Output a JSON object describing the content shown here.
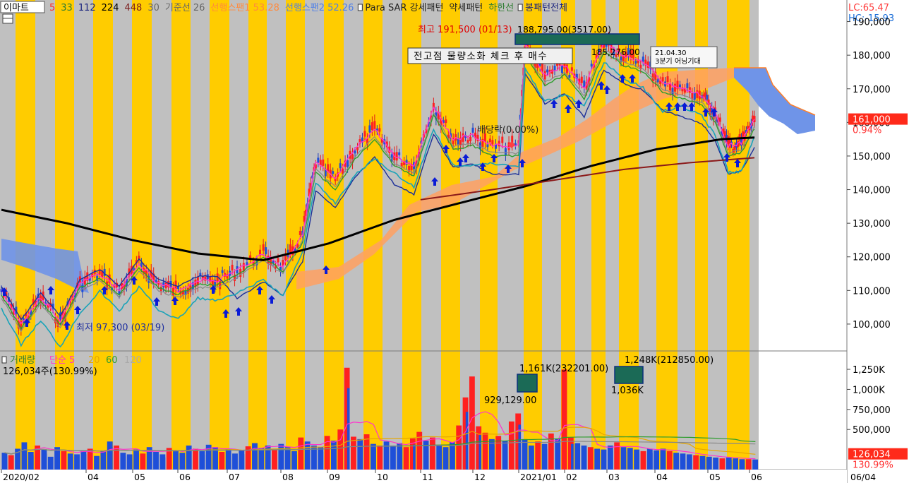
{
  "price_header": {
    "stock": "이마트",
    "items": [
      {
        "text": "5",
        "color": "#ff2a2a"
      },
      {
        "text": "33",
        "color": "#2e7d32"
      },
      {
        "text": "112",
        "color": "#1a237e"
      },
      {
        "text": "224",
        "color": "#000000"
      },
      {
        "text": "448",
        "color": "#7b1f1f"
      },
      {
        "text": "30",
        "color": "#666666"
      },
      {
        "text": "기준선 26",
        "color": "#666666"
      },
      {
        "text": "선행스팬1 53.28",
        "color": "#ff8a3d"
      },
      {
        "text": "선행스팬2 52.26",
        "color": "#4f7fe8"
      },
      {
        "text": "Para SAR 강세패턴",
        "color": "#222222"
      },
      {
        "text": "약세패턴",
        "color": "#222222"
      },
      {
        "text": "하한선",
        "color": "#2e7d32"
      },
      {
        "text": "봉패턴전체",
        "color": "#1a237e"
      }
    ]
  },
  "lc_hc": {
    "lc": "LC:65.47",
    "hc": "HC:-15.93"
  },
  "annotations": {
    "high": "최고 191,500 (01/13)",
    "high2": "188,795.00(3517.00)",
    "mid_high": "185,276.00",
    "note_date": "21.04.30",
    "note_text": "3분기 어닝기대",
    "box_text": "전고점 물량소화 체크 후 매수",
    "dividend": "배당락(0.00%)",
    "low": "최저 97,300 (03/19)"
  },
  "price_axis": {
    "ticks": [
      "190,000",
      "180,000",
      "170,000",
      "160,000",
      "150,000",
      "140,000",
      "130,000",
      "120,000",
      "110,000",
      "100,000"
    ],
    "current_price": "161,000",
    "current_change": "0.94%"
  },
  "volume_header": {
    "label": "거래량",
    "ma_label": "단순 5",
    "ma_20": "20",
    "ma_60": "60",
    "ma_120": "120",
    "value_text": "126,034주(130.99%)"
  },
  "volume_annotations": {
    "peak1": "1,161K(232201.00)",
    "peak1_low": "929,129.00",
    "peak2": "1,248K(212850.00)",
    "peak2_low": "1,036K"
  },
  "volume_axis": {
    "ticks": [
      "1,250K",
      "1,000K",
      "750,000",
      "500,000"
    ],
    "current": "126,034",
    "current_pct": "130.99%"
  },
  "x_axis": {
    "labels": [
      "2020/02",
      "04",
      "05",
      "06",
      "07",
      "08",
      "09",
      "10",
      "11",
      "12",
      "2021/01",
      "02",
      "03",
      "04",
      "05",
      "06"
    ],
    "right_label": "06/04"
  },
  "chart_data": {
    "type": "line",
    "title": "이마트",
    "ylim": [
      92000,
      196000
    ],
    "close_series_points": [
      {
        "t": 0,
        "v": 110000
      },
      {
        "t": 3,
        "v": 100000
      },
      {
        "t": 6,
        "v": 108000
      },
      {
        "t": 9,
        "v": 101000
      },
      {
        "t": 12,
        "v": 112000
      },
      {
        "t": 15,
        "v": 115000
      },
      {
        "t": 18,
        "v": 110000
      },
      {
        "t": 21,
        "v": 118000
      },
      {
        "t": 24,
        "v": 112000
      },
      {
        "t": 27,
        "v": 110000
      },
      {
        "t": 30,
        "v": 113000
      },
      {
        "t": 33,
        "v": 113000
      },
      {
        "t": 36,
        "v": 116000
      },
      {
        "t": 40,
        "v": 121000
      },
      {
        "t": 43,
        "v": 117000
      },
      {
        "t": 46,
        "v": 127000
      },
      {
        "t": 48,
        "v": 148000
      },
      {
        "t": 51,
        "v": 143000
      },
      {
        "t": 54,
        "v": 152000
      },
      {
        "t": 57,
        "v": 158000
      },
      {
        "t": 60,
        "v": 150000
      },
      {
        "t": 63,
        "v": 147000
      },
      {
        "t": 66,
        "v": 165000
      },
      {
        "t": 69,
        "v": 155000
      },
      {
        "t": 72,
        "v": 156000
      },
      {
        "t": 75,
        "v": 153000
      },
      {
        "t": 79,
        "v": 153000
      },
      {
        "t": 80,
        "v": 183000
      },
      {
        "t": 83,
        "v": 174000
      },
      {
        "t": 86,
        "v": 177000
      },
      {
        "t": 89,
        "v": 170000
      },
      {
        "t": 92,
        "v": 184000
      },
      {
        "t": 95,
        "v": 180000
      },
      {
        "t": 98,
        "v": 178000
      },
      {
        "t": 101,
        "v": 172000
      },
      {
        "t": 104,
        "v": 170000
      },
      {
        "t": 107,
        "v": 168000
      },
      {
        "t": 109,
        "v": 163000
      },
      {
        "t": 111,
        "v": 153000
      },
      {
        "t": 113,
        "v": 154000
      },
      {
        "t": 115,
        "v": 161000
      }
    ],
    "ma224_points": [
      {
        "t": 0,
        "v": 134000
      },
      {
        "t": 10,
        "v": 130000
      },
      {
        "t": 20,
        "v": 125000
      },
      {
        "t": 30,
        "v": 121000
      },
      {
        "t": 40,
        "v": 119000
      },
      {
        "t": 50,
        "v": 124000
      },
      {
        "t": 60,
        "v": 131000
      },
      {
        "t": 70,
        "v": 136000
      },
      {
        "t": 80,
        "v": 141000
      },
      {
        "t": 90,
        "v": 147000
      },
      {
        "t": 100,
        "v": 152000
      },
      {
        "t": 110,
        "v": 155000
      },
      {
        "t": 115,
        "v": 155500
      }
    ],
    "ma448_points": [
      {
        "t": 64,
        "v": 137000
      },
      {
        "t": 75,
        "v": 140000
      },
      {
        "t": 85,
        "v": 143000
      },
      {
        "t": 95,
        "v": 146000
      },
      {
        "t": 105,
        "v": 148000
      },
      {
        "t": 115,
        "v": 149500
      }
    ],
    "volume_bars": [
      210000,
      180000,
      260000,
      340000,
      220000,
      300000,
      250000,
      160000,
      280000,
      230000,
      200000,
      190000,
      240000,
      260000,
      170000,
      230000,
      350000,
      300000,
      210000,
      190000,
      250000,
      200000,
      280000,
      220000,
      190000,
      270000,
      240000,
      210000,
      300000,
      260000,
      230000,
      310000,
      280000,
      220000,
      260000,
      200000,
      240000,
      290000,
      330000,
      270000,
      300000,
      250000,
      320000,
      280000,
      230000,
      400000,
      350000,
      300000,
      280000,
      420000,
      360000,
      500000,
      1270000,
      410000,
      380000,
      440000,
      320000,
      300000,
      350000,
      300000,
      330000,
      280000,
      390000,
      470000,
      360000,
      400000,
      300000,
      280000,
      340000,
      550000,
      900000,
      1161000,
      540000,
      460000,
      380000,
      420000,
      360000,
      600000,
      700000,
      380000,
      300000,
      350000,
      320000,
      450000,
      380000,
      1248000,
      400000,
      330000,
      300000,
      280000,
      260000,
      250000,
      300000,
      340000,
      280000,
      270000,
      250000,
      230000,
      260000,
      240000,
      260000,
      230000,
      210000,
      200000,
      190000,
      180000,
      170000,
      160000,
      150000,
      140000,
      150000,
      140000,
      130000,
      130000,
      126034
    ]
  }
}
